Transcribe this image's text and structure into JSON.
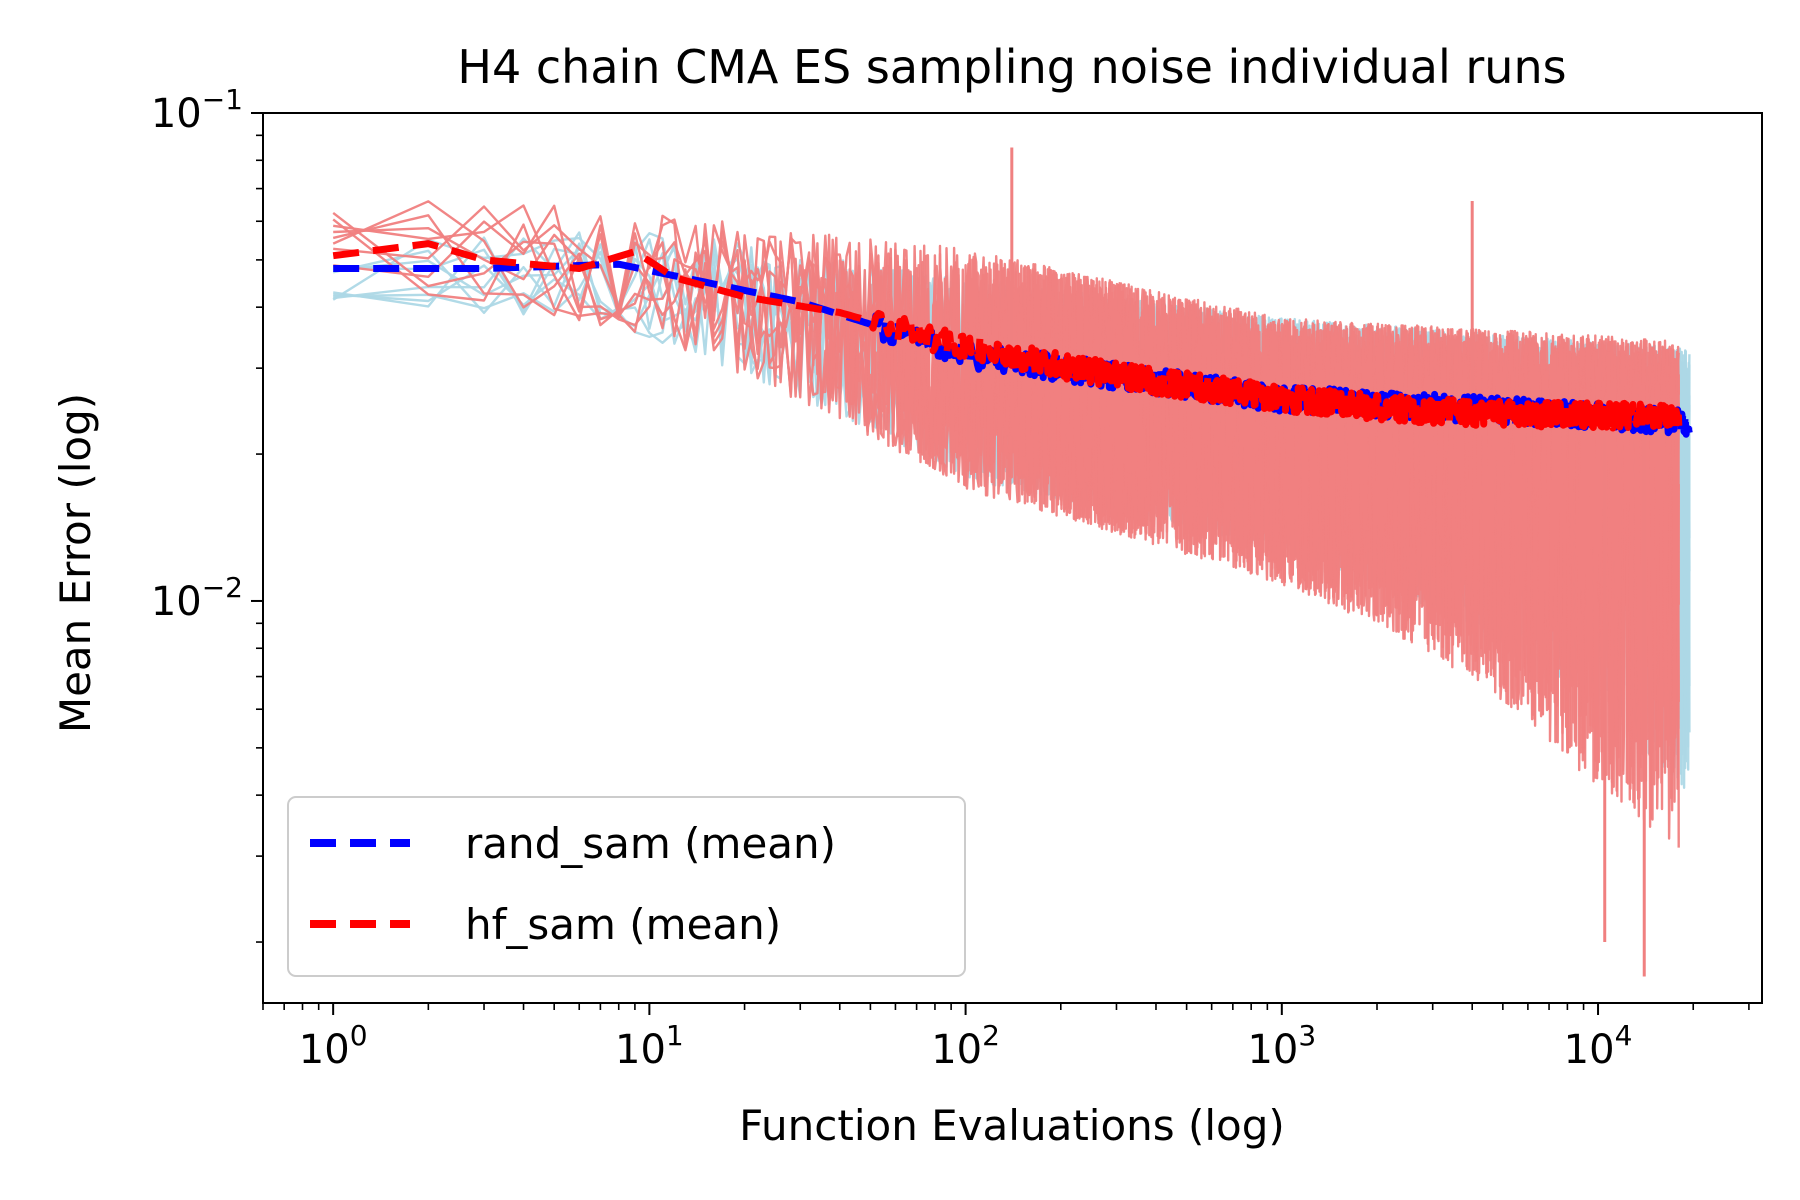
{
  "chart_data": {
    "type": "line",
    "title": "H4 chain CMA ES sampling noise individual runs",
    "xlabel": "Function Evaluations (log)",
    "ylabel": "Mean Error (log)",
    "xscale": "log",
    "yscale": "log",
    "xlim": [
      0.6,
      33000
    ],
    "ylim": [
      0.0015,
      0.1
    ],
    "x_ticks": [
      {
        "base": "10",
        "exp": "0"
      },
      {
        "base": "10",
        "exp": "1"
      },
      {
        "base": "10",
        "exp": "2"
      },
      {
        "base": "10",
        "exp": "3"
      },
      {
        "base": "10",
        "exp": "4"
      }
    ],
    "y_ticks": [
      {
        "base": "10",
        "exp": "−1"
      },
      {
        "base": "10",
        "exp": "−2"
      }
    ],
    "legend": {
      "placement": "lower-left",
      "entries": [
        {
          "label": "rand_sam (mean)",
          "color": "#0000ff",
          "style": "dashed"
        },
        {
          "label": "hf_sam (mean)",
          "color": "#ff0000",
          "style": "dashed"
        }
      ]
    },
    "series": [
      {
        "name": "rand_sam (individual runs)",
        "color": "#add8e6",
        "style": "solid",
        "x_end": 19500,
        "mean_trend": [
          [
            1,
            0.047
          ],
          [
            10,
            0.046
          ],
          [
            100,
            0.032
          ],
          [
            1000,
            0.026
          ],
          [
            10000,
            0.024
          ],
          [
            19500,
            0.023
          ]
        ],
        "spread_down": [
          [
            1,
            0.006
          ],
          [
            10,
            0.012
          ],
          [
            100,
            0.015
          ],
          [
            1000,
            0.014
          ],
          [
            10000,
            0.019
          ],
          [
            19500,
            0.02
          ]
        ],
        "spread_up": [
          [
            1,
            0.008
          ],
          [
            10,
            0.012
          ],
          [
            100,
            0.014
          ],
          [
            1000,
            0.012
          ],
          [
            10000,
            0.01
          ],
          [
            19500,
            0.01
          ]
        ]
      },
      {
        "name": "hf_sam (individual runs)",
        "color": "#f08080",
        "style": "solid",
        "x_end": 18000,
        "mean_trend": [
          [
            1,
            0.05
          ],
          [
            2,
            0.054
          ],
          [
            10,
            0.048
          ],
          [
            100,
            0.033
          ],
          [
            1000,
            0.026
          ],
          [
            10000,
            0.024
          ],
          [
            18000,
            0.024
          ]
        ],
        "spread_down": [
          [
            1,
            0.012
          ],
          [
            10,
            0.014
          ],
          [
            100,
            0.017
          ],
          [
            1000,
            0.016
          ],
          [
            10000,
            0.021
          ],
          [
            18000,
            0.022
          ]
        ],
        "spread_up": [
          [
            1,
            0.014
          ],
          [
            10,
            0.015
          ],
          [
            100,
            0.02
          ],
          [
            1000,
            0.012
          ],
          [
            10000,
            0.011
          ],
          [
            18000,
            0.01
          ]
        ],
        "spikes": [
          [
            140,
            0.085
          ],
          [
            4000,
            0.066
          ],
          [
            10500,
            0.002
          ],
          [
            14000,
            0.0017
          ]
        ]
      },
      {
        "name": "rand_sam (mean)",
        "color": "#0000ff",
        "style": "dashed",
        "x_end": 19500,
        "points": [
          [
            1,
            0.048
          ],
          [
            3,
            0.048
          ],
          [
            8,
            0.049
          ],
          [
            30,
            0.041
          ],
          [
            100,
            0.032
          ],
          [
            1000,
            0.026
          ],
          [
            10000,
            0.024
          ],
          [
            19500,
            0.0232
          ]
        ]
      },
      {
        "name": "hf_sam (mean)",
        "color": "#ff0000",
        "style": "dashed",
        "x_end": 18000,
        "points": [
          [
            1,
            0.051
          ],
          [
            2,
            0.054
          ],
          [
            3,
            0.05
          ],
          [
            6,
            0.048
          ],
          [
            9,
            0.052
          ],
          [
            12,
            0.046
          ],
          [
            20,
            0.042
          ],
          [
            40,
            0.039
          ],
          [
            100,
            0.033
          ],
          [
            300,
            0.029
          ],
          [
            1000,
            0.026
          ],
          [
            3000,
            0.0245
          ],
          [
            10000,
            0.024
          ],
          [
            18000,
            0.024
          ]
        ]
      }
    ]
  }
}
